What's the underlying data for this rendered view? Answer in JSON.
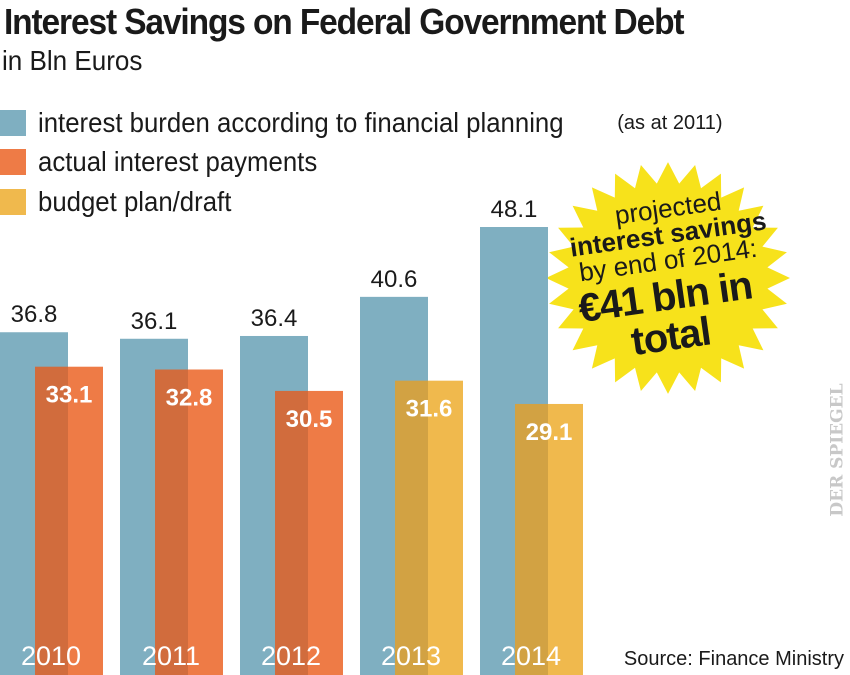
{
  "title": "Interest Savings on Federal Government Debt",
  "subtitle": "in Bln Euros",
  "legend": [
    {
      "label": "interest burden according to financial planning",
      "note": "(as at 2011)",
      "color": "#7fafc1"
    },
    {
      "label": "actual interest payments",
      "note": "",
      "color": "#ee7b46"
    },
    {
      "label": "budget plan/draft",
      "note": "",
      "color": "#f0b94d"
    }
  ],
  "callout": {
    "line1": "projected",
    "line2": "interest savings",
    "line3": "by end of 2014:",
    "line4": "€41 bln in total",
    "color": "#f7e21b"
  },
  "source": "Source: Finance Ministry",
  "logo": "DER SPIEGEL",
  "chart_data": {
    "type": "bar",
    "categories": [
      "2010",
      "2011",
      "2012",
      "2013",
      "2014"
    ],
    "series": [
      {
        "name": "interest burden according to financial planning (as at 2011)",
        "values": [
          36.8,
          36.1,
          36.4,
          40.6,
          48.1
        ],
        "color": "#7fafc1"
      },
      {
        "name": "actual interest payments / budget plan/draft",
        "values": [
          33.1,
          32.8,
          30.5,
          31.6,
          29.1
        ],
        "colors": [
          "#ee7b46",
          "#ee7b46",
          "#ee7b46",
          "#f0b94d",
          "#f0b94d"
        ]
      }
    ],
    "ylim": [
      0,
      48.1
    ],
    "grid": false,
    "legend_position": "top-left"
  }
}
